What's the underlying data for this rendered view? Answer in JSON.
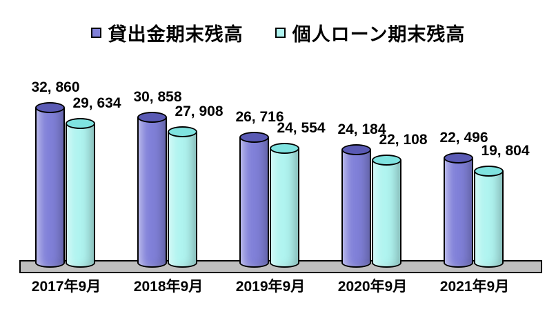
{
  "chart_data": {
    "type": "bar",
    "subtype": "3d-cylinder",
    "title": "",
    "categories": [
      "2017年9月",
      "2018年9月",
      "2019年9月",
      "2020年9月",
      "2021年9月"
    ],
    "series": [
      {
        "name": "貸出金期末残高",
        "color": "#8181d9",
        "top_color": "#5a5ab4",
        "values": [
          32860,
          30858,
          26716,
          24184,
          22496
        ],
        "labels": [
          "32, 860",
          "30, 858",
          "26, 716",
          "24, 184",
          "22, 496"
        ]
      },
      {
        "name": "個人ローン期末残高",
        "color": "#b0f4f0",
        "top_color": "#7fe3e0",
        "values": [
          29634,
          27908,
          24554,
          22108,
          19804
        ],
        "labels": [
          "29, 634",
          "27, 908",
          "24, 554",
          "22, 108",
          "19, 804"
        ]
      }
    ],
    "ylim": [
      0,
      35000
    ],
    "legend_position": "top-center",
    "grid": false,
    "floor_color": "#bfbfbf",
    "background_color": "#ffffff"
  }
}
